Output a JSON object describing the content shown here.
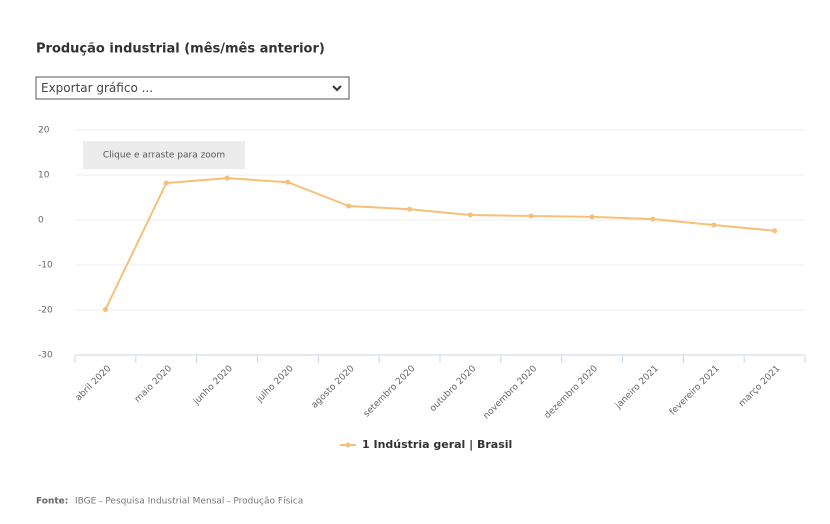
{
  "chart_data": {
    "type": "line",
    "title": "Produção industrial (mês/mês anterior)",
    "export_menu": "Exportar gráfico ...",
    "zoom_hint": "Clique e arraste para zoom",
    "categories": [
      "abril 2020",
      "maio 2020",
      "junho 2020",
      "julho 2020",
      "agosto 2020",
      "setembro 2020",
      "outubro 2020",
      "novembro 2020",
      "dezembro 2020",
      "janeiro 2021",
      "fevereiro 2021",
      "março 2021"
    ],
    "series": [
      {
        "name": "1 Indústria geral | Brasil",
        "color": "#f5c07a",
        "values": [
          -19.9,
          8.2,
          9.3,
          8.4,
          3.1,
          2.4,
          1.1,
          0.9,
          0.7,
          0.2,
          -1.1,
          -2.4
        ]
      }
    ],
    "ylim": [
      -30,
      20
    ],
    "yticks": [
      -30,
      -20,
      -10,
      0,
      10,
      20
    ],
    "grid": true,
    "source_label": "Fonte:",
    "source_text": "IBGE - Pesquisa Industrial Mensal - Produção Física"
  }
}
